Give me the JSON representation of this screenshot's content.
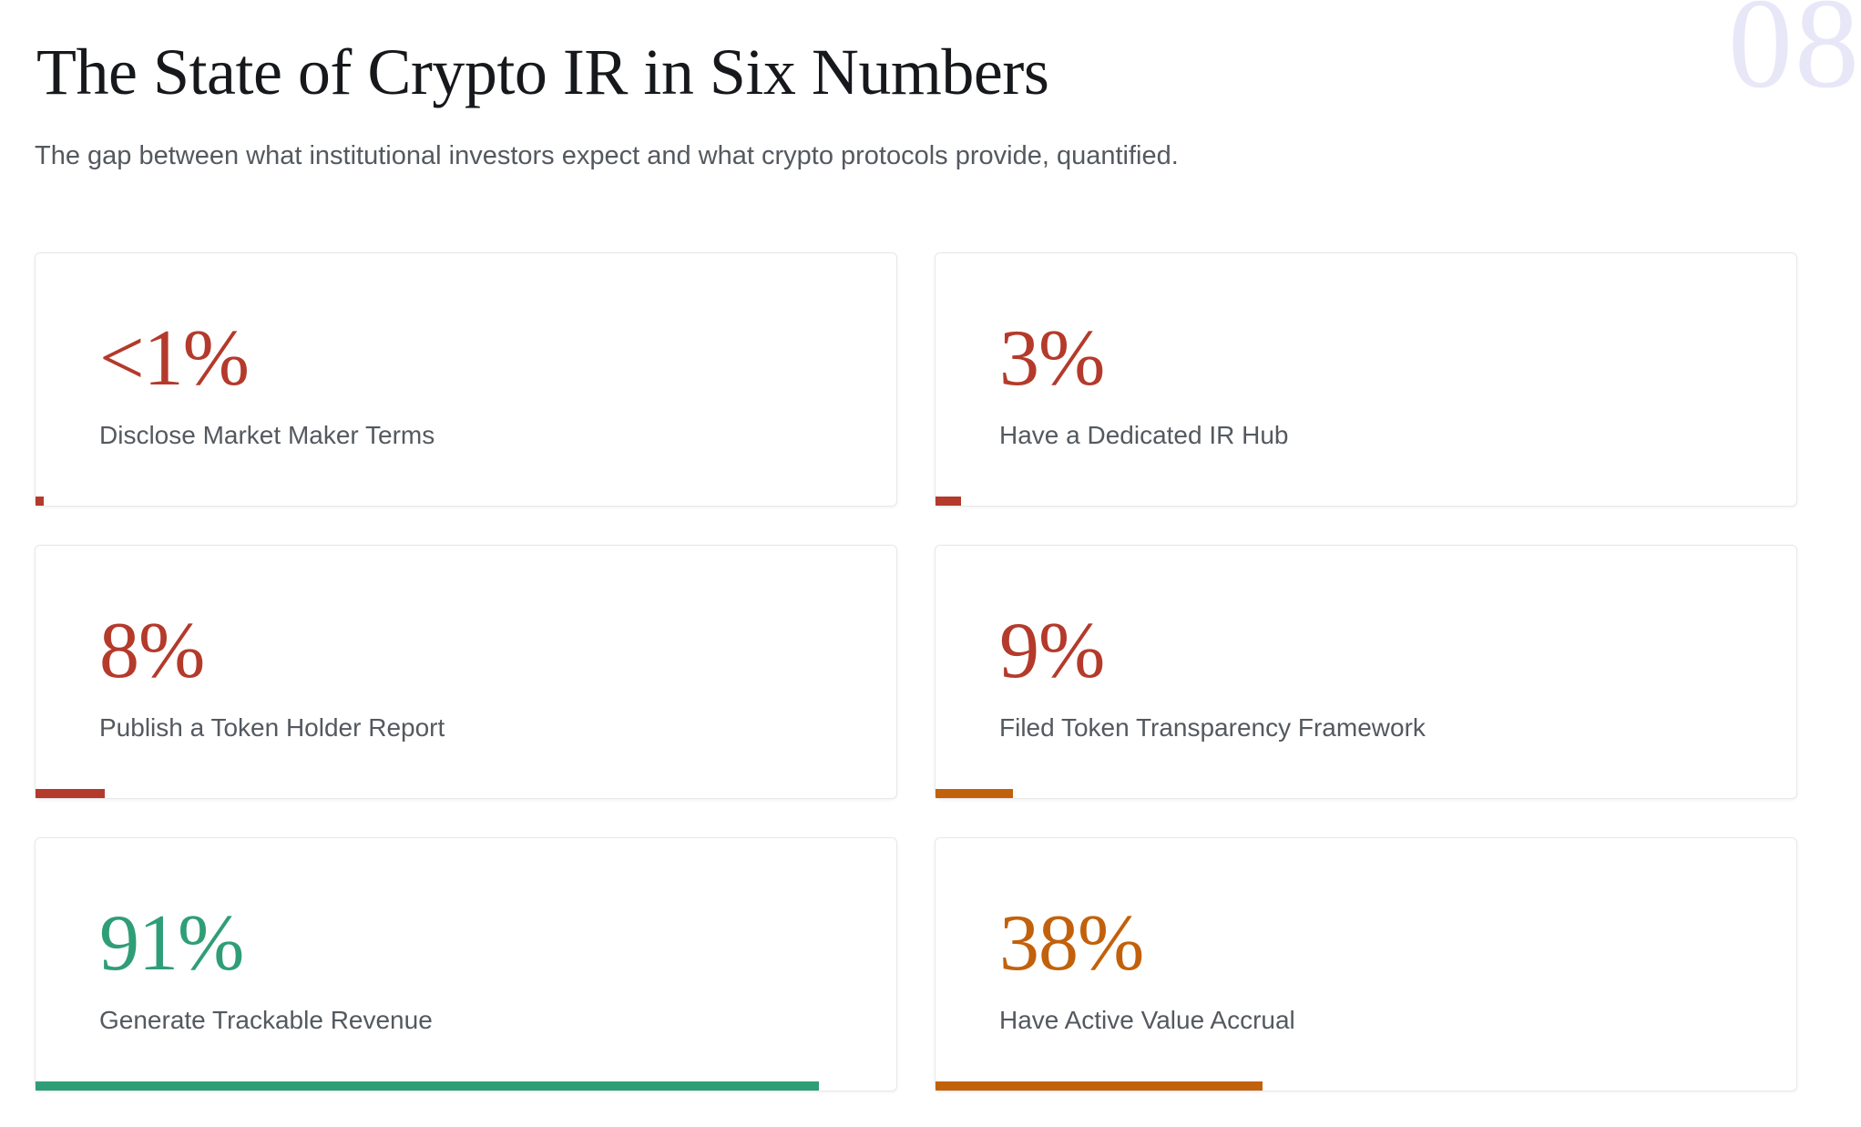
{
  "page": {
    "title": "The State of Crypto IR in Six Numbers",
    "subtitle": "The gap between what institutional investors expect and what crypto protocols provide, quantified.",
    "watermark": "08"
  },
  "colors": {
    "red": "#b43a2b",
    "orange": "#c2610b",
    "green": "#2f9e77",
    "watermark": "#e8e7f8",
    "title_text": "#16181b",
    "muted_text": "#54595f",
    "card_border": "#e8e8e8"
  },
  "stats": [
    {
      "value": "<1%",
      "pct": 1,
      "label": "Disclose Market Maker Terms",
      "value_color": "red",
      "bar_color": "red"
    },
    {
      "value": "3%",
      "pct": 3,
      "label": "Have a Dedicated IR Hub",
      "value_color": "red",
      "bar_color": "red"
    },
    {
      "value": "8%",
      "pct": 8,
      "label": "Publish a Token Holder Report",
      "value_color": "red",
      "bar_color": "red"
    },
    {
      "value": "9%",
      "pct": 9,
      "label": "Filed Token Transparency Framework",
      "value_color": "red",
      "bar_color": "orange"
    },
    {
      "value": "91%",
      "pct": 91,
      "label": "Generate Trackable Revenue",
      "value_color": "green",
      "bar_color": "green"
    },
    {
      "value": "38%",
      "pct": 38,
      "label": "Have Active Value Accrual",
      "value_color": "orange",
      "bar_color": "orange"
    }
  ],
  "chart_data": {
    "type": "bar",
    "title": "The State of Crypto IR in Six Numbers",
    "subtitle": "The gap between what institutional investors expect and what crypto protocols provide, quantified.",
    "categories": [
      "Disclose Market Maker Terms",
      "Have a Dedicated IR Hub",
      "Publish a Token Holder Report",
      "Filed Token Transparency Framework",
      "Generate Trackable Revenue",
      "Have Active Value Accrual"
    ],
    "values": [
      1,
      3,
      8,
      9,
      91,
      38
    ],
    "value_labels": [
      "<1%",
      "3%",
      "8%",
      "9%",
      "91%",
      "38%"
    ],
    "unit": "%",
    "xlim": [
      0,
      100
    ],
    "bar_colors": [
      "#b43a2b",
      "#b43a2b",
      "#b43a2b",
      "#c2610b",
      "#2f9e77",
      "#c2610b"
    ],
    "layout": "2x3 stat cards with bottom progress bars",
    "page_number": "08"
  }
}
